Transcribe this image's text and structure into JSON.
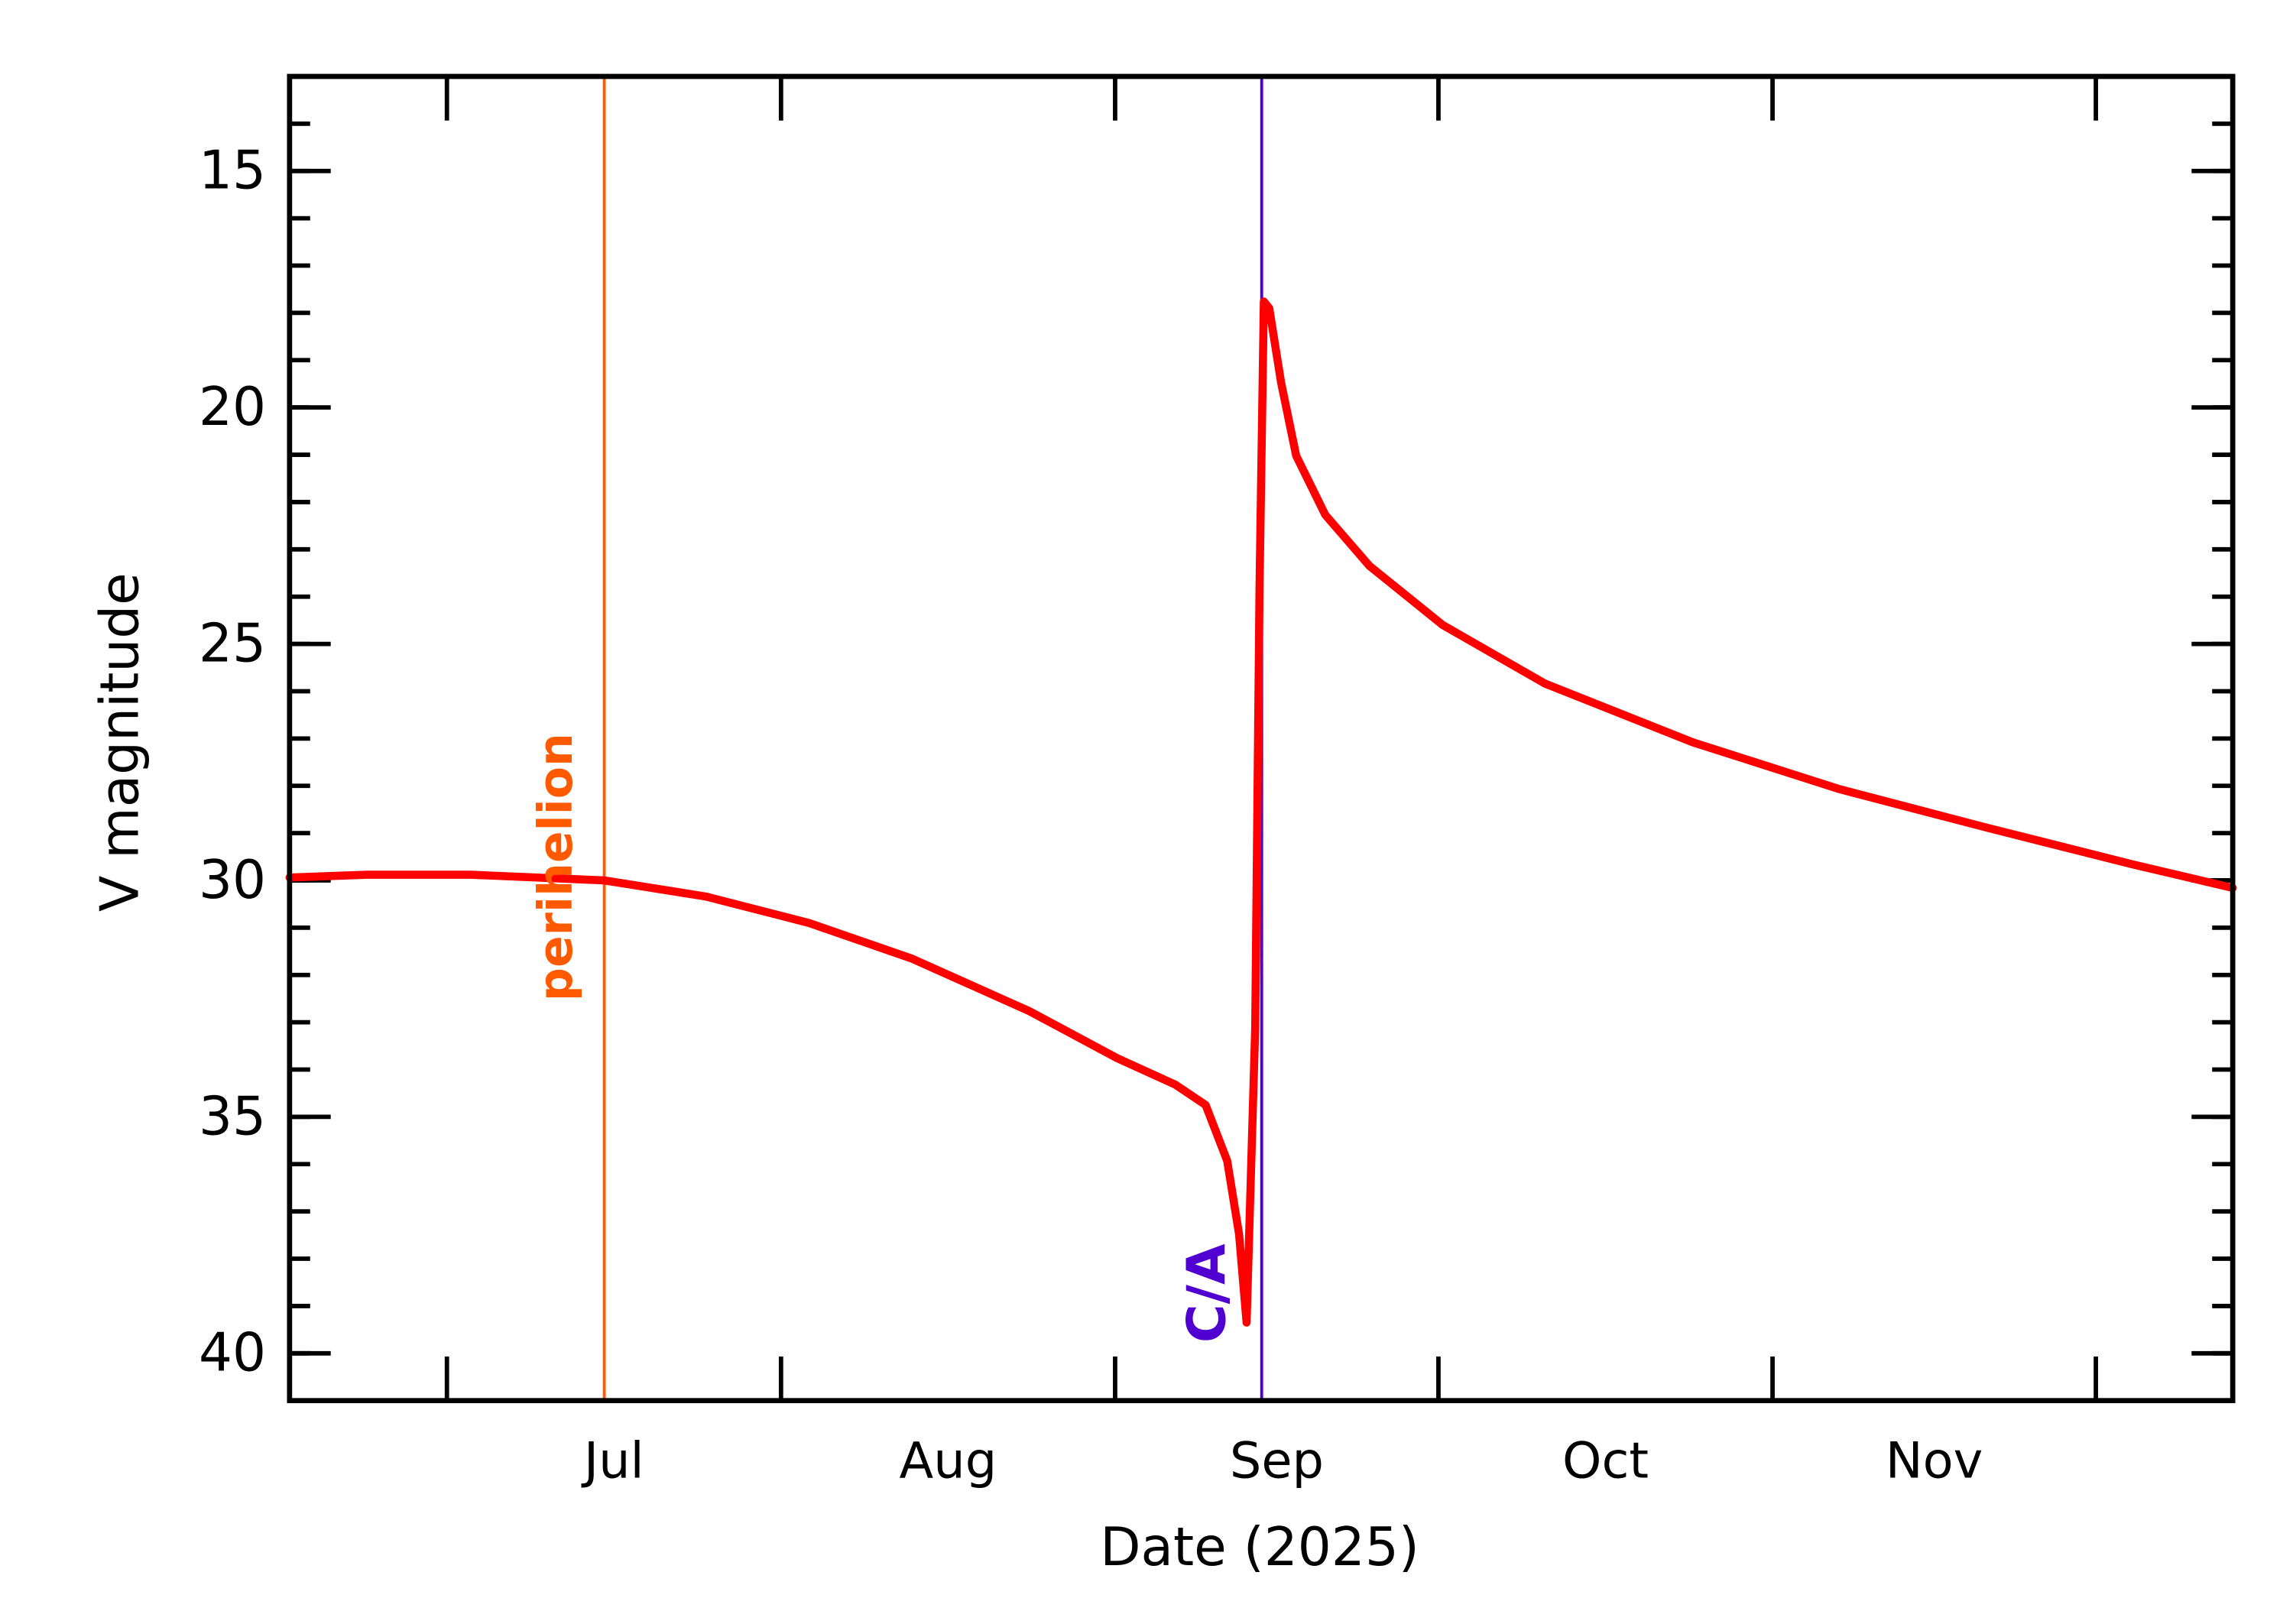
{
  "chart_data": {
    "type": "line",
    "xlabel": "Date (2025)",
    "ylabel": "V magnitude",
    "x": [
      167.4,
      174.6,
      184.2,
      196.6,
      206,
      215.6,
      225.1,
      236,
      244.2,
      249.6,
      252.4,
      254.4,
      255.5,
      256.2,
      257,
      257.4,
      257.8,
      258.3,
      259.4,
      260.8,
      263.5,
      267.6,
      274.4,
      283.9,
      297.6,
      311.2,
      324.8,
      338.4,
      347.7
    ],
    "values": [
      29.94,
      29.88,
      29.88,
      30.0,
      30.34,
      30.9,
      31.65,
      32.76,
      33.76,
      34.32,
      34.75,
      35.93,
      37.48,
      39.35,
      33.1,
      23.8,
      17.76,
      17.9,
      19.47,
      21.02,
      22.27,
      23.35,
      24.6,
      25.84,
      27.08,
      28.07,
      28.88,
      29.66,
      30.16
    ],
    "color": "#ff0000",
    "xlim": [
      167.4,
      347.7
    ],
    "xticks": [
      182,
      213,
      244,
      274,
      305,
      335
    ],
    "month_labels": [
      "Jul",
      "Aug",
      "Sep",
      "Oct",
      "Nov"
    ],
    "ylim": [
      41,
      13
    ],
    "yticks": [
      15,
      20,
      25,
      30,
      35,
      40
    ],
    "yminor_step": 1,
    "markers": [
      {
        "label": "perihelion",
        "x": 196.6,
        "color": "#ff5a00"
      },
      {
        "label": "C/A",
        "x": 257.6,
        "color": "#5000d0"
      }
    ]
  }
}
